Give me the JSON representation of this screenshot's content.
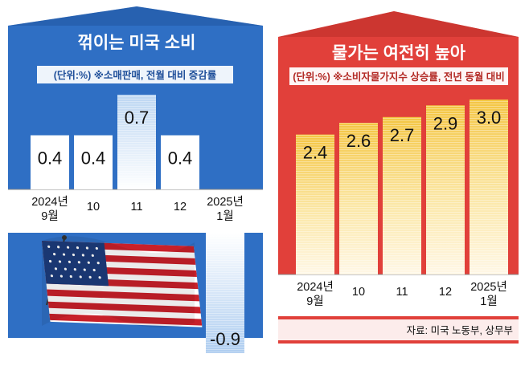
{
  "chart_data": [
    {
      "type": "bar",
      "title": "꺾이는 미국 소비",
      "subtitle": "(단위:%) ※소매판매, 전월 대비 증감률",
      "categories": [
        [
          "2024년",
          "9월"
        ],
        [
          "10"
        ],
        [
          "11"
        ],
        [
          "12"
        ],
        [
          "2025년",
          "1월"
        ]
      ],
      "values": [
        0.4,
        0.4,
        0.7,
        0.4,
        -0.9
      ],
      "value_labels": [
        "0.4",
        "0.4",
        "0.7",
        "0.4",
        "-0.9"
      ],
      "panel_color": "#2f6fc4"
    },
    {
      "type": "bar",
      "title": "물가는 여전히 높아",
      "subtitle": "(단위:%) ※소비자물가지수 상승률, 전년 동월 대비",
      "categories": [
        [
          "2024년",
          "9월"
        ],
        [
          "10"
        ],
        [
          "11"
        ],
        [
          "12"
        ],
        [
          "2025년",
          "1월"
        ]
      ],
      "values": [
        2.4,
        2.6,
        2.7,
        2.9,
        3.0
      ],
      "value_labels": [
        "2.4",
        "2.6",
        "2.7",
        "2.9",
        "3.0"
      ],
      "panel_color": "#e1403a"
    }
  ],
  "source": "자료: 미국 노동부, 상무부",
  "icons": [
    "us-flag-icon"
  ]
}
